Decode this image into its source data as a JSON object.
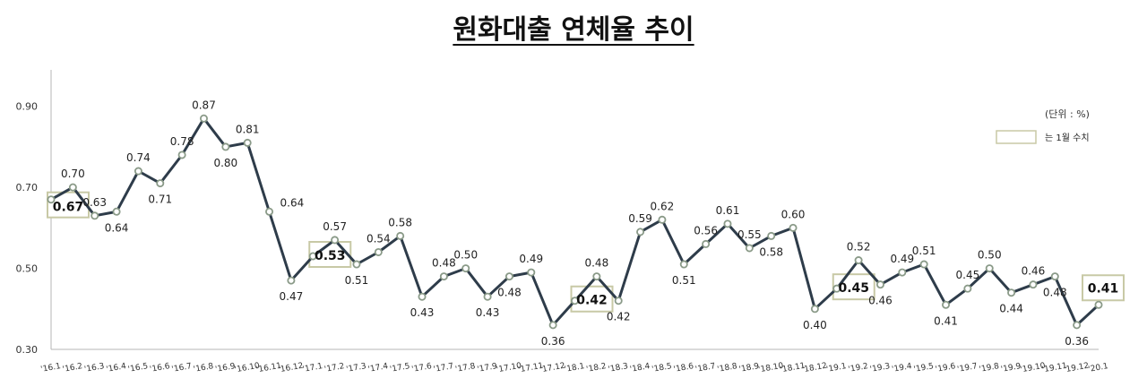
{
  "chart_data": {
    "type": "line",
    "title": "원화대출 연체율 추이",
    "unit_note": "(단위 : %)",
    "legend_note": "는 1월 수치",
    "yticks": [
      "0.30",
      "0.50",
      "0.70",
      "0.90"
    ],
    "ylim": [
      0.3,
      0.99
    ],
    "categories": [
      "'16.1",
      "'16.2",
      "'16.3",
      "'16.4",
      "'16.5",
      "'16.6",
      "'16.7",
      "'16.8",
      "'16.9",
      "'16.10",
      "'16.11",
      "'16.12",
      "'17.1",
      "'17.2",
      "'17.3",
      "'17.4",
      "'17.5",
      "'17.6",
      "'17.7",
      "'17.8",
      "'17.9",
      "'17.10",
      "'17.11",
      "'17.12",
      "'18.1",
      "'18.2",
      "'18.3",
      "'18.4",
      "'18.5",
      "'18.6",
      "'18.7",
      "'18.8",
      "'18.9",
      "'18.10",
      "'18.11",
      "'18.12",
      "'19.1",
      "'19.2",
      "'19.3",
      "'19.4",
      "'19.5",
      "'19.6",
      "'19.7",
      "'19.8",
      "'19.9",
      "'19.10",
      "'19.11",
      "'19.12",
      "'20.1"
    ],
    "values": [
      0.67,
      0.7,
      0.63,
      0.64,
      0.74,
      0.71,
      0.78,
      0.87,
      0.8,
      0.81,
      0.64,
      0.47,
      0.53,
      0.57,
      0.51,
      0.54,
      0.58,
      0.43,
      0.48,
      0.5,
      0.43,
      0.48,
      0.49,
      0.36,
      0.42,
      0.48,
      0.42,
      0.59,
      0.62,
      0.51,
      0.56,
      0.61,
      0.55,
      0.58,
      0.6,
      0.4,
      0.45,
      0.52,
      0.46,
      0.49,
      0.51,
      0.41,
      0.45,
      0.5,
      0.44,
      0.46,
      0.48,
      0.36,
      0.41
    ],
    "labels": [
      "0.67",
      "0.70",
      "0.63",
      "0.64",
      "0.74",
      "0.71",
      "0.78",
      "0.87",
      "0.80",
      "0.81",
      "0.64",
      "0.47",
      "0.53",
      "0.57",
      "0.51",
      "0.54",
      "0.58",
      "0.43",
      "0.48",
      "0.50",
      "0.43",
      "0.48",
      "0.49",
      "0.36",
      "0.42",
      "0.48",
      "0.42",
      "0.59",
      "0.62",
      "0.51",
      "0.56",
      "0.61",
      "0.55",
      "0.58",
      "0.60",
      "0.40",
      "0.45",
      "0.52",
      "0.46",
      "0.49",
      "0.51",
      "0.41",
      "0.45",
      "0.50",
      "0.44",
      "0.46",
      "0.48",
      "0.36",
      "0.41"
    ],
    "label_positions": [
      "below",
      "above",
      "above",
      "below",
      "above",
      "below",
      "above",
      "above",
      "below",
      "above",
      "right",
      "below",
      "above",
      "above",
      "below",
      "above",
      "above",
      "below",
      "above",
      "above",
      "below",
      "below",
      "above",
      "below",
      "above",
      "above",
      "below",
      "above",
      "above",
      "below",
      "above",
      "above",
      "above",
      "below",
      "above",
      "below",
      "above",
      "above",
      "below",
      "above",
      "above",
      "below",
      "above",
      "above",
      "below",
      "above",
      "below",
      "below",
      "above"
    ],
    "highlighted": [
      0,
      12,
      24,
      36,
      48
    ],
    "colors": {
      "line": "#2e3c4a",
      "marker_fill": "#ffffff",
      "marker_stroke": "#8a9a88",
      "box_stroke": "#c8c9a6",
      "axis": "#b5b5b5"
    }
  }
}
